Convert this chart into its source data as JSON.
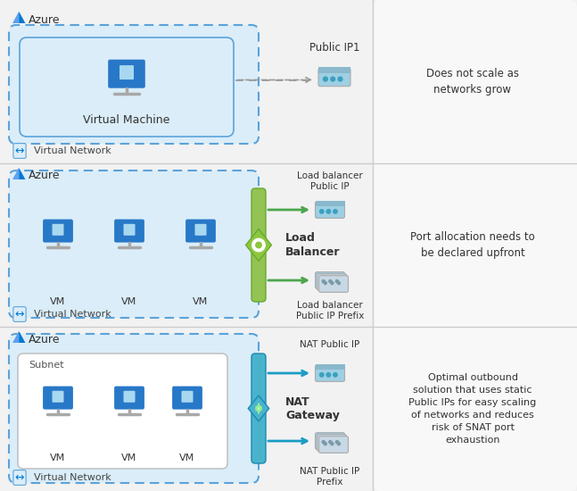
{
  "bg_color": "#f2f2f2",
  "white": "#ffffff",
  "azure_fill": "#daedf9",
  "azure_border": "#5ba3d9",
  "subnet_fill": "#ffffff",
  "subnet_border": "#bbbbbb",
  "arrow_green": "#4ca64c",
  "arrow_blue": "#1a9cc4",
  "arrow_gray": "#999999",
  "text_dark": "#333333",
  "text_blue": "#0078d4",
  "divider_color": "#cccccc",
  "azure_logo_color": "#0078d4",
  "lb_green": "#8dc63f",
  "lb_bar_green": "#92c353",
  "nat_cyan": "#4ab3cc",
  "ip_teal": "#3aa0c0",
  "ip_bg": "#9ecfe3",
  "ip_dark": "#5a8ea8",
  "vm_blue": "#2878c8",
  "vm_screen": "#6ab4e8",
  "vm_cube": "#a8d8f0",
  "vm_stand": "#a8a8a8",
  "labels": {
    "row1": {
      "azure": "Azure",
      "vnet": "Virtual Network",
      "vm": "Virtual Machine",
      "ip_label": "Public IP1",
      "note": "Does not scale as\nnetworks grow"
    },
    "row2": {
      "azure": "Azure",
      "vnet": "Virtual Network",
      "vm": "VM",
      "lb_label": "Load\nBalancer",
      "ip_label1": "Load balancer\nPublic IP",
      "ip_label2": "Load balancer\nPublic IP Prefix",
      "note": "Port allocation needs to\nbe declared upfront"
    },
    "row3": {
      "azure": "Azure",
      "vnet": "Virtual Network",
      "subnet": "Subnet",
      "vm": "VM",
      "nat_label": "NAT\nGateway",
      "ip_label1": "NAT Public IP",
      "ip_label2": "NAT Public IP\nPrefix",
      "note": "Optimal outbound\nsolution that uses static\nPublic IPs for easy scaling\nof networks and reduces\nrisk of SNAT port\nexhaustion"
    }
  }
}
